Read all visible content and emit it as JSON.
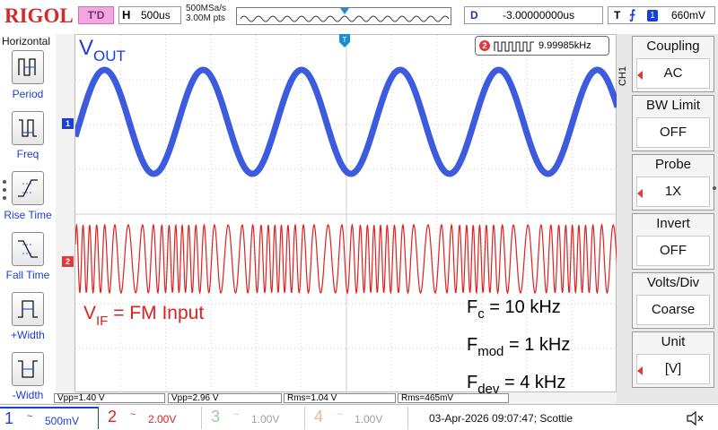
{
  "brand": "RIGOL",
  "trigger_status": "T'D",
  "horizontal": {
    "label": "H",
    "timebase": "500us"
  },
  "acquisition": {
    "sample_rate": "500MSa/s",
    "memory_depth": "3.00M pts"
  },
  "delay": {
    "label": "D",
    "value": "-3.00000000us"
  },
  "trigger": {
    "label": "T",
    "channel": "1",
    "level": "660mV"
  },
  "left_menu": {
    "title": "Horizontal",
    "items": [
      {
        "label": "Period",
        "icon": "period-icon"
      },
      {
        "label": "Freq",
        "icon": "frequency-icon"
      },
      {
        "label": "Rise Time",
        "icon": "rise-time-icon"
      },
      {
        "label": "Fall Time",
        "icon": "fall-time-icon"
      },
      {
        "label": "+Width",
        "icon": "positive-width-icon"
      },
      {
        "label": "-Width",
        "icon": "negative-width-icon"
      }
    ]
  },
  "screen": {
    "ch1_marker": "1",
    "ch2_marker": "2",
    "vout_main": "V",
    "vout_sub": "OUT",
    "vif_main": "V",
    "vif_sub": "IF",
    "vif_rest": " = FM Input",
    "params": [
      {
        "main": "F",
        "sub": "c",
        "rest": " = 10 kHz"
      },
      {
        "main": "F",
        "sub": "mod",
        "rest": " = 1 kHz"
      },
      {
        "main": "F",
        "sub": "dev",
        "rest": " = 4 kHz"
      }
    ],
    "freq_counter": {
      "channel": "2",
      "value": "9.99985kHz"
    }
  },
  "measurements": [
    {
      "text": "Vpp=1.40 V",
      "color": "#1a3ed8"
    },
    {
      "text": "Vpp=2.96 V",
      "color": "#e02020"
    },
    {
      "text": "Rms=1.04 V",
      "color": "#e02020"
    },
    {
      "text": "Rms=465mV",
      "color": "#1a3ed8"
    }
  ],
  "channels": [
    {
      "num": "1",
      "coupling": "~",
      "scale": "500mV",
      "color": "#1a3ed8",
      "active": true
    },
    {
      "num": "2",
      "coupling": "~",
      "scale": "2.00V",
      "color": "#e02020",
      "active": true
    },
    {
      "num": "3",
      "coupling": "~",
      "scale": "1.00V",
      "color": "#9fcf9f",
      "active": false
    },
    {
      "num": "4",
      "coupling": "~",
      "scale": "1.00V",
      "color": "#e6b99a",
      "active": false
    }
  ],
  "datetime": "03-Apr-2026 09:07:47; Scottie",
  "right_menu": {
    "channel_tag": "CH1",
    "items": [
      {
        "title": "Coupling",
        "value": "AC"
      },
      {
        "title": "BW Limit",
        "value": "OFF"
      },
      {
        "title": "Probe",
        "value": "1X"
      },
      {
        "title": "Invert",
        "value": "OFF"
      },
      {
        "title": "Volts/Div",
        "value": "Coarse"
      },
      {
        "title": "Unit",
        "value": "[V]"
      }
    ]
  },
  "colors": {
    "ch1": "#1a3ed8",
    "ch2": "#e02020",
    "brand": "#d42a2a"
  }
}
